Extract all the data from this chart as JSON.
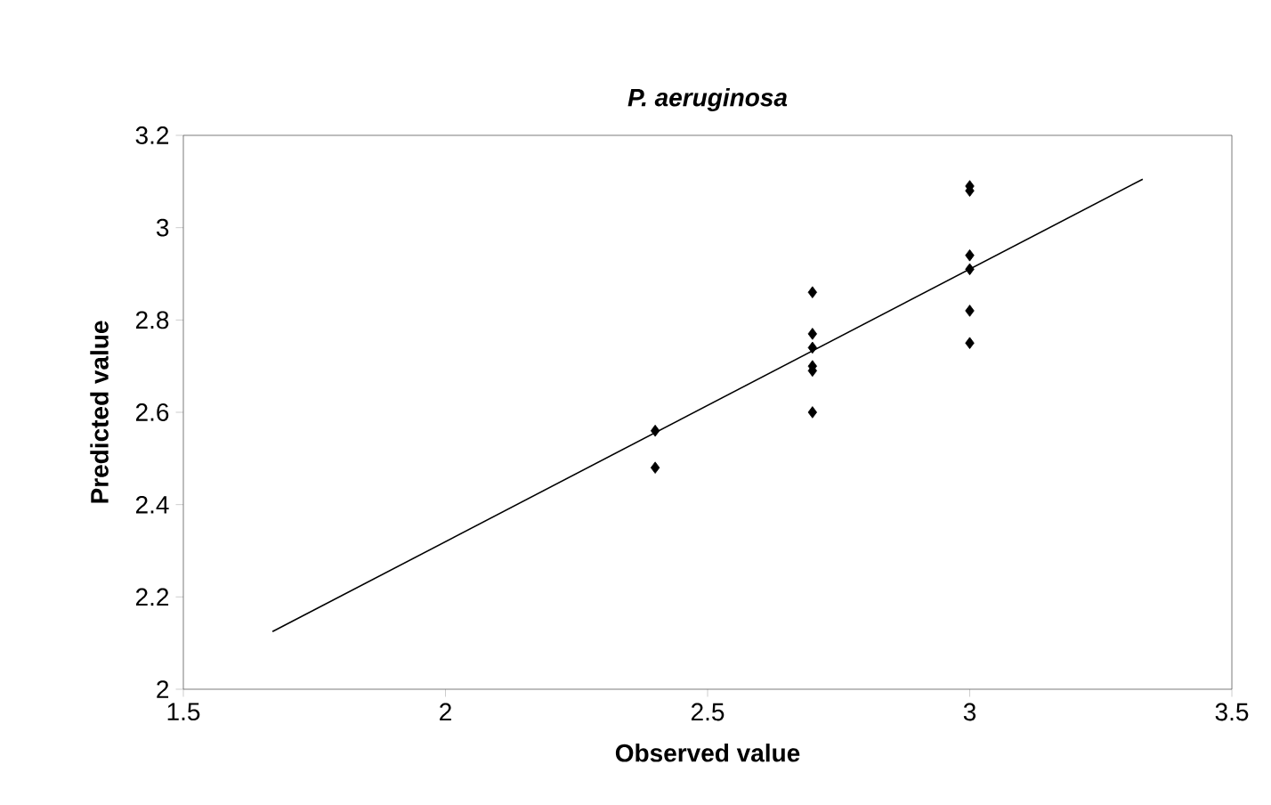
{
  "chart_data": {
    "type": "scatter",
    "title": "*P. aeruginosa*",
    "xlabel": "Observed value",
    "ylabel": "Predicted value",
    "xlim": [
      1.5,
      3.5
    ],
    "ylim": [
      2,
      3.2
    ],
    "xticks": [
      1.5,
      2,
      2.5,
      3,
      3.5
    ],
    "yticks": [
      2,
      2.2,
      2.4,
      2.6,
      2.8,
      3,
      3.2
    ],
    "grid": false,
    "series": [
      {
        "color": "#000000",
        "marker": "diamond",
        "x": [
          2.4,
          2.4,
          2.7,
          2.7,
          2.7,
          2.7,
          2.7,
          2.7,
          3,
          3,
          3,
          3,
          3,
          3
        ],
        "values": [
          2.56,
          2.48,
          2.86,
          2.77,
          2.74,
          2.7,
          2.69,
          2.6,
          3.09,
          3.08,
          2.94,
          2.91,
          2.82,
          2.75
        ]
      },
      {
        "type": "line",
        "color": "#000000",
        "marker": "none",
        "x": [
          1.67,
          3.33
        ],
        "values": [
          2.125,
          3.105
        ]
      }
    ]
  }
}
